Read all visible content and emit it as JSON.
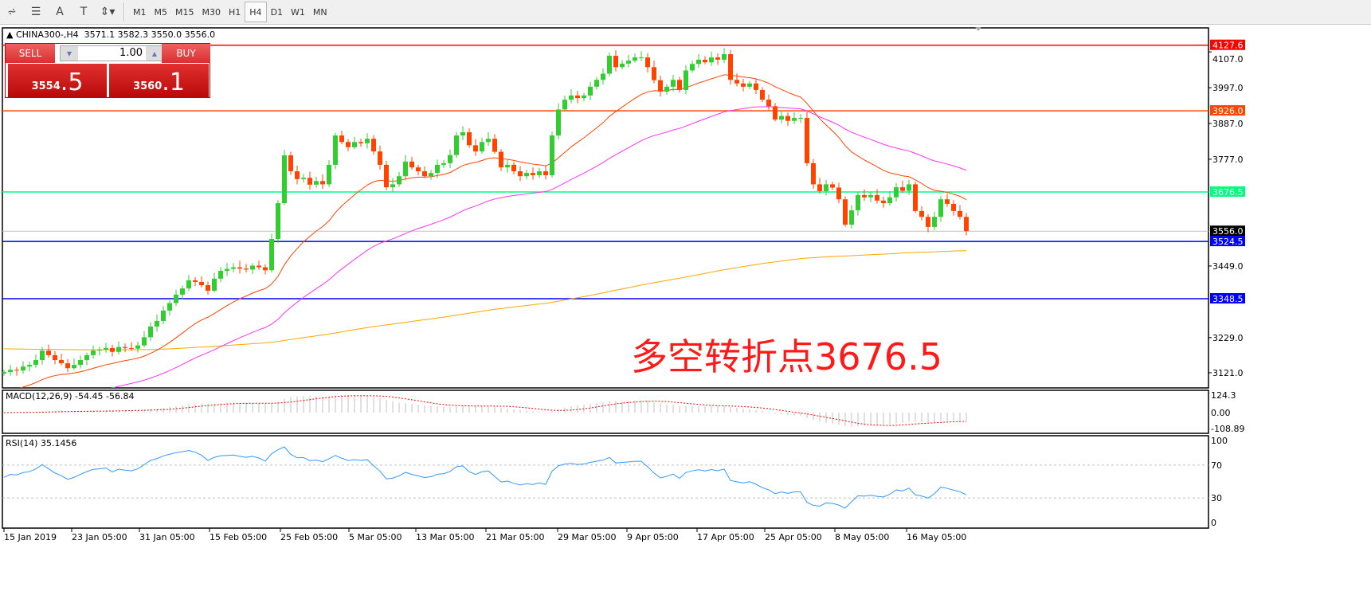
{
  "toolbar": {
    "icons": [
      "fibonacci-expansion-icon",
      "fibonacci-fan-icon",
      "text-icon",
      "text-label-icon",
      "arrows-icon"
    ],
    "text_tool": "A",
    "label_tool": "T",
    "timeframes": [
      "M1",
      "M5",
      "M15",
      "M30",
      "H1",
      "H4",
      "D1",
      "W1",
      "MN"
    ],
    "active_timeframe": "H4"
  },
  "header": {
    "symbol": "CHINA300-,H4",
    "open": "3571.1",
    "high": "3582.3",
    "low": "3550.0",
    "close": "3556.0"
  },
  "trade": {
    "sell_label": "SELL",
    "buy_label": "BUY",
    "lot": "1.00",
    "sell_int": "3554",
    "sell_dec": ".5",
    "buy_int": "3560",
    "buy_dec": ".1"
  },
  "annotation": "多空转折点3676.5",
  "colors": {
    "bull": "#33cc33",
    "bear": "#ff4400",
    "ma_fast": "#ff4400",
    "ma_mid": "#ff33ff",
    "ma_slow": "#ffa500",
    "rsi": "#3399ff",
    "macd_signal": "#ff0000",
    "macd_hist": "#c0c0c0"
  },
  "levels": [
    {
      "price": 4127.6,
      "label": "4127.6",
      "color": "#ff0000"
    },
    {
      "price": 3926.0,
      "label": "3926.0",
      "color": "#ff4500"
    },
    {
      "price": 3676.5,
      "label": "3676.5",
      "color": "#00ff7f"
    },
    {
      "price": 3556.0,
      "label": "3556.0",
      "color": "#c0c0c0",
      "label_bg": "#000000"
    },
    {
      "price": 3524.5,
      "label": "3524.5",
      "color": "#0000ff"
    },
    {
      "price": 3348.5,
      "label": "3348.5",
      "color": "#0000ff"
    }
  ],
  "price_axis": [
    "4107.0",
    "3997.0",
    "3887.0",
    "3777.0",
    "3449.0",
    "3229.0",
    "3121.0"
  ],
  "macd": {
    "label": "MACD(12,26,9) -54.45 -56.84",
    "axis": [
      "124.3",
      "0.00",
      "-108.89"
    ]
  },
  "rsi": {
    "label": "RSI(14) 35.1456",
    "axis": [
      "100",
      "70",
      "30",
      "0"
    ]
  },
  "date_axis": [
    "15 Jan 2019",
    "23 Jan 05:00",
    "31 Jan 05:00",
    "15 Feb 05:00",
    "25 Feb 05:00",
    "5 Mar 05:00",
    "13 Mar 05:00",
    "21 Mar 05:00",
    "29 Mar 05:00",
    "9 Apr 05:00",
    "17 Apr 05:00",
    "25 Apr 05:00",
    "8 May 05:00",
    "16 May 05:00"
  ],
  "chart_data": {
    "type": "candlestick",
    "symbol": "CHINA300-",
    "timeframe": "H4",
    "ylim": [
      3110,
      4150
    ],
    "close": [
      3123,
      3130,
      3128,
      3140,
      3145,
      3160,
      3189,
      3175,
      3160,
      3150,
      3135,
      3145,
      3160,
      3175,
      3189,
      3192,
      3197,
      3185,
      3200,
      3197,
      3195,
      3205,
      3230,
      3263,
      3280,
      3312,
      3335,
      3361,
      3380,
      3405,
      3400,
      3390,
      3373,
      3410,
      3434,
      3440,
      3445,
      3441,
      3438,
      3450,
      3445,
      3436,
      3532,
      3642,
      3789,
      3740,
      3716,
      3720,
      3699,
      3710,
      3700,
      3760,
      3850,
      3830,
      3814,
      3830,
      3826,
      3840,
      3801,
      3760,
      3691,
      3700,
      3725,
      3770,
      3752,
      3740,
      3725,
      3735,
      3760,
      3765,
      3790,
      3850,
      3860,
      3820,
      3801,
      3830,
      3840,
      3800,
      3752,
      3760,
      3740,
      3725,
      3735,
      3728,
      3740,
      3728,
      3850,
      3930,
      3960,
      3973,
      3965,
      3973,
      4000,
      4021,
      4040,
      4095,
      4060,
      4071,
      4080,
      4090,
      4090,
      4060,
      4020,
      3985,
      4000,
      4021,
      3990,
      4050,
      4070,
      4083,
      4075,
      4090,
      4083,
      4100,
      4021,
      4010,
      4000,
      4010,
      3990,
      3960,
      3940,
      3899,
      3910,
      3895,
      3904,
      3904,
      3765,
      3700,
      3679,
      3700,
      3690,
      3654,
      3576,
      3620,
      3667,
      3660,
      3667,
      3650,
      3642,
      3660,
      3691,
      3680,
      3700,
      3618,
      3600,
      3569,
      3600,
      3654,
      3640,
      3618,
      3600,
      3556
    ]
  }
}
